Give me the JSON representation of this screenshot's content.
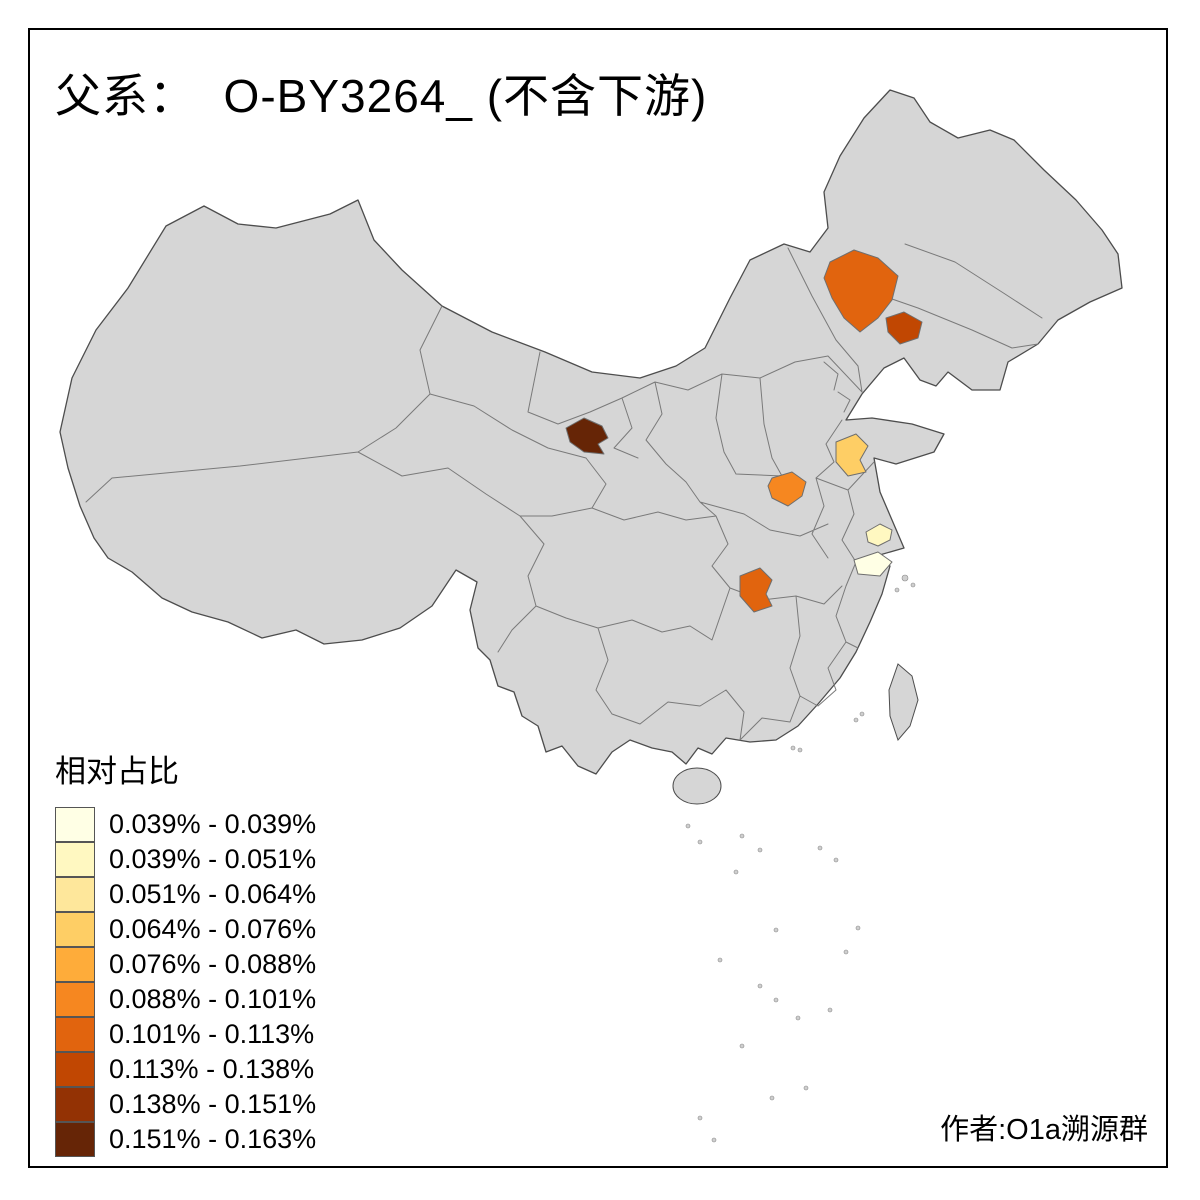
{
  "page": {
    "title": "父系：  O-BY3264_ (不含下游)",
    "attribution": "作者:O1a溯源群",
    "background": "#FFFFFF",
    "frame_color": "#000000"
  },
  "map": {
    "base_color": "#D6D6D6",
    "sea_color": "#FFFFFF",
    "outline_color": "#4D4D4D",
    "province_border_color": "#7A7A7A",
    "regions": [
      {
        "id": "chifeng",
        "area": "Inner Mongolia southeast",
        "class": "0.101% - 0.113%",
        "color": "#E1640E"
      },
      {
        "id": "liaoning-west",
        "area": "Liaoning west",
        "class": "0.113% - 0.138%",
        "color": "#C14702"
      },
      {
        "id": "gansu-lanzhou",
        "area": "Gansu (Lanzhou area)",
        "class": "0.151% - 0.163%",
        "color": "#662506"
      },
      {
        "id": "shandong-central",
        "area": "Shandong central",
        "class": "0.064% - 0.076%",
        "color": "#FECE65"
      },
      {
        "id": "henan-central",
        "area": "Henan central",
        "class": "0.088% - 0.101%",
        "color": "#F68720"
      },
      {
        "id": "hunan-central",
        "area": "Hunan central",
        "class": "0.101% - 0.113%",
        "color": "#E1640E"
      },
      {
        "id": "jiangsu-south",
        "area": "Jiangsu south",
        "class": "0.039% - 0.051%",
        "color": "#FFF8C1"
      },
      {
        "id": "zhejiang-north",
        "area": "Zhejiang north",
        "class": "0.039% - 0.039%",
        "color": "#FFFFE5"
      }
    ]
  },
  "legend": {
    "title": "相对占比",
    "items": [
      {
        "label": "0.039% - 0.039%",
        "color": "#FFFFE5"
      },
      {
        "label": "0.039% - 0.051%",
        "color": "#FFF8C1"
      },
      {
        "label": "0.051% - 0.064%",
        "color": "#FEE79B"
      },
      {
        "label": "0.064% - 0.076%",
        "color": "#FECE65"
      },
      {
        "label": "0.076% - 0.088%",
        "color": "#FEAC3A"
      },
      {
        "label": "0.088% - 0.101%",
        "color": "#F68720"
      },
      {
        "label": "0.101% - 0.113%",
        "color": "#E1640E"
      },
      {
        "label": "0.113% - 0.138%",
        "color": "#C14702"
      },
      {
        "label": "0.138% - 0.151%",
        "color": "#933204"
      },
      {
        "label": "0.151% - 0.163%",
        "color": "#662506"
      }
    ]
  }
}
